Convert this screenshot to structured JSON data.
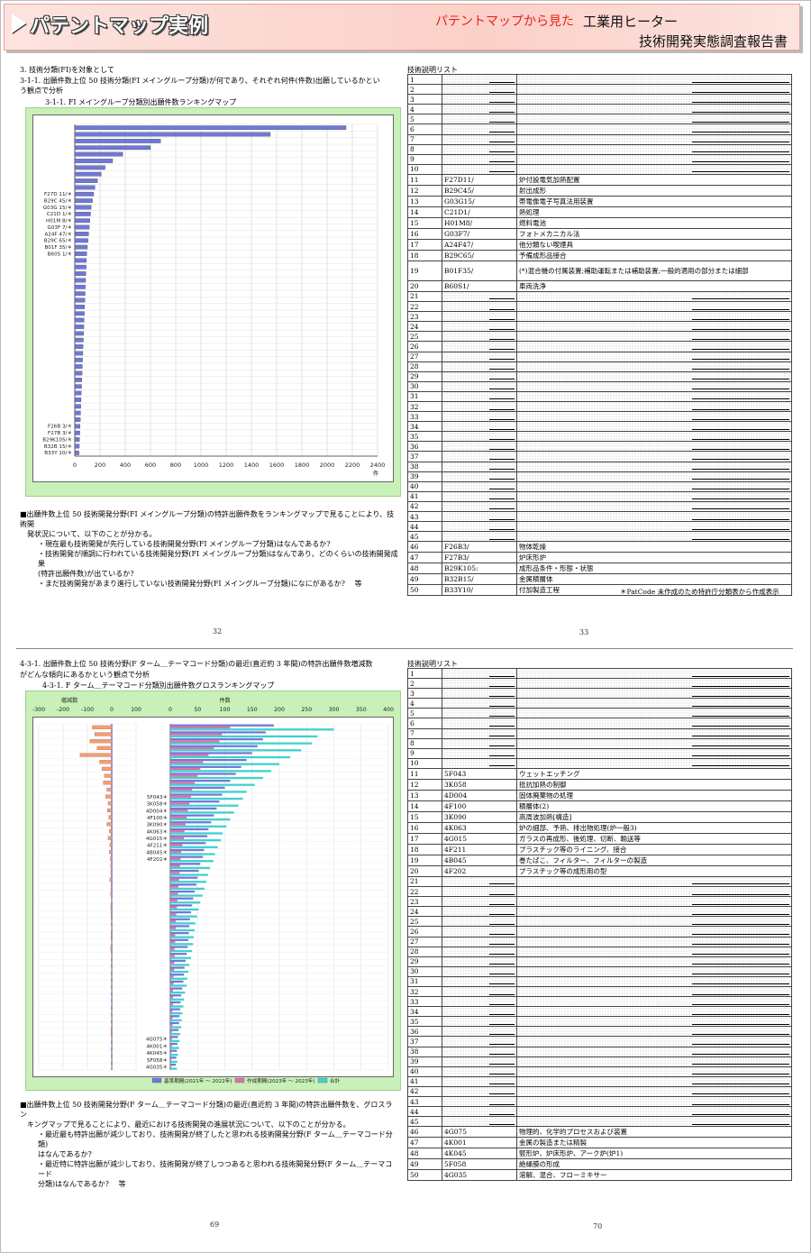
{
  "header": {
    "title": "パテントマップ実例",
    "subtitle": "パテントマップから見た",
    "product": "工業用ヒーター",
    "report": "技術開発実態調査報告書"
  },
  "page32": {
    "heading1": "3. 技術分類(FI)を対象として",
    "heading2a": "3-1-1. 出願件数上位 50 技術分類(FI メイングループ分類)が何であり、それぞれ何件(件数)出願しているかとい",
    "heading2b": "う観点で分析",
    "chart_title": "3-1-1. FI メイングループ分類別出願件数ランキングマップ",
    "desc_lines": [
      "■出願件数上位 50 技術開発分野(FI メイングループ分類)の特許出願件数をランキングマップで見ることにより、技術開",
      "発状況について、以下のことが分かる。",
      "・現在最も技術開発が先行している技術開発分野(FI メイングループ分類)はなんであるか?",
      "・技術開発が順調に行われている技術開発分野(FI メイングループ分類)はなんであり、どのくらいの技術開発成果",
      "(特許出願件数)が出ているか?",
      "・まだ技術開発があまり進行していない技術開発分野(FI メイングループ分類)になにがあるか?　 等"
    ],
    "page_number": "32"
  },
  "page33": {
    "list_title": "技術説明リスト",
    "rows": [
      {
        "n": "1",
        "code": "",
        "desc": ""
      },
      {
        "n": "2",
        "code": "",
        "desc": ""
      },
      {
        "n": "3",
        "code": "",
        "desc": ""
      },
      {
        "n": "4",
        "code": "",
        "desc": ""
      },
      {
        "n": "5",
        "code": "",
        "desc": ""
      },
      {
        "n": "6",
        "code": "",
        "desc": ""
      },
      {
        "n": "7",
        "code": "",
        "desc": ""
      },
      {
        "n": "8",
        "code": "",
        "desc": ""
      },
      {
        "n": "9",
        "code": "",
        "desc": ""
      },
      {
        "n": "10",
        "code": "",
        "desc": ""
      },
      {
        "n": "11",
        "code": "F27D11/",
        "desc": "炉付設電気加熱配置"
      },
      {
        "n": "12",
        "code": "B29C45/",
        "desc": "射出成形"
      },
      {
        "n": "13",
        "code": "G03G15/",
        "desc": "帯電像電子写真法用装置"
      },
      {
        "n": "14",
        "code": "C21D1/",
        "desc": "熱処理"
      },
      {
        "n": "15",
        "code": "H01M8/",
        "desc": "燃料電池"
      },
      {
        "n": "16",
        "code": "G03F7/",
        "desc": "フォトメカニカル法"
      },
      {
        "n": "17",
        "code": "A24F47/",
        "desc": "他分類ない喫煙具"
      },
      {
        "n": "18",
        "code": "B29C65/",
        "desc": "予備成形品接合"
      },
      {
        "n": "19",
        "code": "B01F35/",
        "desc": "(*)混合機の付属装置;補助運転または補助装置;一般的適用の部分または細部"
      },
      {
        "n": "20",
        "code": "B60S1/",
        "desc": "車両洗浄"
      },
      {
        "n": "21",
        "code": "",
        "desc": ""
      },
      {
        "n": "22",
        "code": "",
        "desc": ""
      },
      {
        "n": "23",
        "code": "",
        "desc": ""
      },
      {
        "n": "24",
        "code": "",
        "desc": ""
      },
      {
        "n": "25",
        "code": "",
        "desc": ""
      },
      {
        "n": "26",
        "code": "",
        "desc": ""
      },
      {
        "n": "27",
        "code": "",
        "desc": ""
      },
      {
        "n": "28",
        "code": "",
        "desc": ""
      },
      {
        "n": "29",
        "code": "",
        "desc": ""
      },
      {
        "n": "30",
        "code": "",
        "desc": ""
      },
      {
        "n": "31",
        "code": "",
        "desc": ""
      },
      {
        "n": "32",
        "code": "",
        "desc": ""
      },
      {
        "n": "33",
        "code": "",
        "desc": ""
      },
      {
        "n": "34",
        "code": "",
        "desc": ""
      },
      {
        "n": "35",
        "code": "",
        "desc": ""
      },
      {
        "n": "36",
        "code": "",
        "desc": ""
      },
      {
        "n": "37",
        "code": "",
        "desc": ""
      },
      {
        "n": "38",
        "code": "",
        "desc": ""
      },
      {
        "n": "39",
        "code": "",
        "desc": ""
      },
      {
        "n": "40",
        "code": "",
        "desc": ""
      },
      {
        "n": "41",
        "code": "",
        "desc": ""
      },
      {
        "n": "42",
        "code": "",
        "desc": ""
      },
      {
        "n": "43",
        "code": "",
        "desc": ""
      },
      {
        "n": "44",
        "code": "",
        "desc": ""
      },
      {
        "n": "45",
        "code": "",
        "desc": ""
      },
      {
        "n": "46",
        "code": "F26B3/",
        "desc": "物体乾燥"
      },
      {
        "n": "47",
        "code": "F27B3/",
        "desc": "炉床形炉"
      },
      {
        "n": "48",
        "code": "B29K105:",
        "desc": "成形品条件・形態・状態"
      },
      {
        "n": "49",
        "code": "B32B15/",
        "desc": "金属積層体"
      },
      {
        "n": "50",
        "code": "B33Y10/",
        "desc": "付加製造工程"
      }
    ],
    "note": "＊PatCode 未作成のため特許庁分類表から作成表示",
    "page_number": "33"
  },
  "page69": {
    "heading_a": "4-3-1. 出願件数上位 50 技術分野(F ターム＿テーマコード分類)の最近(直近約 3 年間)の特許出願件数増減数",
    "heading_b": "がどんな傾向にあるかという観点で分析",
    "chart_title": "4-3-1. F ターム＿テーマコード分類別出願件数グロスランキングマップ",
    "legend": [
      "基準期間(2021年 〜 2022年)",
      "作成期間(2023年 〜 2023年)",
      "合計"
    ],
    "desc_lines": [
      "■出願件数上位 50 技術開発分野(F ターム＿テーマコード分類)の最近(直近約 3 年間)の特許出願件数を、グロスラン",
      "キングマップで見ることにより、最近における技術開発の進展状況について、以下のことが分かる。",
      "・最近最も特許出願が減少しており、技術開発が終了したと思われる技術開発分野(F ターム＿テーマコード分類)",
      "はなんであるか?",
      "・最近特に特許出願が減少しており、技術開発が終了しつつあると思われる技術開発分野(F ターム＿テーマコード",
      "分類)はなんであるか?　 等"
    ],
    "page_number": "69"
  },
  "page70": {
    "list_title": "技術説明リスト",
    "rows": [
      {
        "n": "1",
        "code": "",
        "desc": ""
      },
      {
        "n": "2",
        "code": "",
        "desc": ""
      },
      {
        "n": "3",
        "code": "",
        "desc": ""
      },
      {
        "n": "4",
        "code": "",
        "desc": ""
      },
      {
        "n": "5",
        "code": "",
        "desc": ""
      },
      {
        "n": "6",
        "code": "",
        "desc": ""
      },
      {
        "n": "7",
        "code": "",
        "desc": ""
      },
      {
        "n": "8",
        "code": "",
        "desc": ""
      },
      {
        "n": "9",
        "code": "",
        "desc": ""
      },
      {
        "n": "10",
        "code": "",
        "desc": ""
      },
      {
        "n": "11",
        "code": "5F043",
        "desc": "ウェットエッチング"
      },
      {
        "n": "12",
        "code": "3K058",
        "desc": "抵抗加熱の制御"
      },
      {
        "n": "13",
        "code": "4D004",
        "desc": "固体廃棄物の処理"
      },
      {
        "n": "14",
        "code": "4F100",
        "desc": "積層体(2)"
      },
      {
        "n": "15",
        "code": "3K090",
        "desc": "高周波加熱[構造]"
      },
      {
        "n": "16",
        "code": "4K063",
        "desc": "炉の細部、予熱、排出物処理(炉一般3)"
      },
      {
        "n": "17",
        "code": "4G015",
        "desc": "ガラスの再成形、後処理、切断、輸送等"
      },
      {
        "n": "18",
        "code": "4F211",
        "desc": "プラスチック等のライニング、接合"
      },
      {
        "n": "19",
        "code": "4B045",
        "desc": "巻たばこ、フィルター、フィルターの製造"
      },
      {
        "n": "20",
        "code": "4F202",
        "desc": "プラスチック等の成形用の型"
      },
      {
        "n": "21",
        "code": "",
        "desc": ""
      },
      {
        "n": "22",
        "code": "",
        "desc": ""
      },
      {
        "n": "23",
        "code": "",
        "desc": ""
      },
      {
        "n": "24",
        "code": "",
        "desc": ""
      },
      {
        "n": "25",
        "code": "",
        "desc": ""
      },
      {
        "n": "26",
        "code": "",
        "desc": ""
      },
      {
        "n": "27",
        "code": "",
        "desc": ""
      },
      {
        "n": "28",
        "code": "",
        "desc": ""
      },
      {
        "n": "29",
        "code": "",
        "desc": ""
      },
      {
        "n": "30",
        "code": "",
        "desc": ""
      },
      {
        "n": "31",
        "code": "",
        "desc": ""
      },
      {
        "n": "32",
        "code": "",
        "desc": ""
      },
      {
        "n": "33",
        "code": "",
        "desc": ""
      },
      {
        "n": "34",
        "code": "",
        "desc": ""
      },
      {
        "n": "35",
        "code": "",
        "desc": ""
      },
      {
        "n": "36",
        "code": "",
        "desc": ""
      },
      {
        "n": "37",
        "code": "",
        "desc": ""
      },
      {
        "n": "38",
        "code": "",
        "desc": ""
      },
      {
        "n": "39",
        "code": "",
        "desc": ""
      },
      {
        "n": "40",
        "code": "",
        "desc": ""
      },
      {
        "n": "41",
        "code": "",
        "desc": ""
      },
      {
        "n": "42",
        "code": "",
        "desc": ""
      },
      {
        "n": "43",
        "code": "",
        "desc": ""
      },
      {
        "n": "44",
        "code": "",
        "desc": ""
      },
      {
        "n": "45",
        "code": "",
        "desc": ""
      },
      {
        "n": "46",
        "code": "4G075",
        "desc": "物理的、化学的プロセスおよび装置"
      },
      {
        "n": "47",
        "code": "4K001",
        "desc": "金属の製造または精製"
      },
      {
        "n": "48",
        "code": "4K045",
        "desc": "竪形炉、炉床形炉、アーク炉(炉1)"
      },
      {
        "n": "49",
        "code": "5F058",
        "desc": "絶縁膜の形成"
      },
      {
        "n": "50",
        "code": "4G035",
        "desc": "溶解、混合、フローミキサー"
      }
    ],
    "page_number": "70"
  },
  "chart_data": [
    {
      "type": "bar",
      "orientation": "horizontal",
      "title": "3-1-1. FI メイングループ分類別出願件数ランキングマップ",
      "xlabel": "件",
      "xlim": [
        0,
        2400
      ],
      "xticks": [
        0,
        200,
        400,
        600,
        800,
        1000,
        1200,
        1400,
        1600,
        1800,
        2000,
        2200,
        2400
      ],
      "grid": true,
      "visible_category_labels": {
        "11": "F27D 11/＊",
        "12": "B29C 45/＊",
        "13": "G03G 15/＊",
        "14": "C21D 1/＊",
        "15": "H01M 8/＊",
        "16": "G03F 7/＊",
        "17": "A24F 47/＊",
        "18": "B29C 65/＊",
        "19": "B01F 35/＊",
        "20": "B60S 1/＊",
        "46": "F26B 3/＊",
        "47": "F27B 3/＊",
        "48": "B29K105/＊",
        "49": "B32B 15/＊",
        "50": "B33Y 10/＊"
      },
      "values": [
        2150,
        1550,
        680,
        600,
        380,
        300,
        240,
        210,
        180,
        160,
        150,
        140,
        130,
        125,
        120,
        115,
        110,
        105,
        100,
        95,
        92,
        90,
        88,
        86,
        84,
        82,
        80,
        78,
        76,
        74,
        72,
        70,
        68,
        66,
        64,
        62,
        60,
        58,
        56,
        54,
        52,
        50,
        48,
        46,
        44,
        42,
        40,
        38,
        36,
        34
      ],
      "color": "#6f78d8"
    },
    {
      "type": "bar",
      "orientation": "horizontal",
      "title": "4-3-1. F ターム＿テーマコード分類別出願件数グロスランキングマップ",
      "left_panel": {
        "label": "増減数",
        "xlim": [
          -300,
          100
        ],
        "xticks": [
          -300,
          -200,
          -100,
          0,
          100
        ]
      },
      "right_panel": {
        "label": "件数",
        "xlim": [
          0,
          400
        ],
        "xticks": [
          0,
          50,
          100,
          150,
          200,
          250,
          300,
          350,
          400
        ]
      },
      "visible_category_labels": {
        "11": "5F043＊",
        "12": "3K058＊",
        "13": "4D004＊",
        "14": "4F100＊",
        "15": "3K090＊",
        "16": "4K063＊",
        "17": "4G015＊",
        "18": "4F211＊",
        "19": "4B045＊",
        "20": "4F202＊",
        "46": "4G075＊",
        "47": "4K001＊",
        "48": "4K045＊",
        "49": "5F058＊",
        "50": "4G035＊"
      },
      "legend_position": "bottom",
      "series": [
        {
          "name": "基準期間(2021年 〜 2022年)",
          "color": "#6f78d8",
          "values": [
            190,
            175,
            170,
            160,
            150,
            140,
            130,
            120,
            110,
            100,
            95,
            90,
            85,
            80,
            75,
            70,
            68,
            65,
            62,
            60,
            55,
            52,
            50,
            48,
            45,
            42,
            40,
            38,
            36,
            35,
            34,
            33,
            32,
            30,
            28,
            26,
            25,
            24,
            22,
            20,
            19,
            18,
            17,
            16,
            15,
            14,
            13,
            12,
            11,
            10
          ]
        },
        {
          "name": "作成期間(2023年 〜 2023年)",
          "color": "#e070a8",
          "values": [
            110,
            95,
            90,
            80,
            70,
            60,
            55,
            50,
            45,
            40,
            38,
            35,
            32,
            30,
            28,
            26,
            25,
            22,
            20,
            19,
            18,
            17,
            16,
            15,
            14,
            13,
            12,
            11,
            10,
            10,
            9,
            9,
            8,
            8,
            7,
            7,
            6,
            6,
            5,
            5,
            5,
            4,
            4,
            4,
            3,
            3,
            3,
            2,
            2,
            2
          ]
        },
        {
          "name": "合計",
          "color": "#40d0d0",
          "values": [
            300,
            270,
            260,
            240,
            220,
            200,
            185,
            170,
            155,
            140,
            133,
            125,
            117,
            110,
            103,
            96,
            93,
            87,
            82,
            79,
            73,
            69,
            66,
            63,
            59,
            55,
            52,
            49,
            46,
            45,
            43,
            42,
            40,
            38,
            35,
            33,
            31,
            30,
            27,
            25,
            24,
            22,
            21,
            20,
            18,
            17,
            16,
            14,
            13,
            12
          ]
        },
        {
          "name": "増減数",
          "color": "#f0a070",
          "values": [
            -80,
            -70,
            -90,
            -60,
            -130,
            -50,
            -40,
            -30,
            -35,
            -20,
            -25,
            -15,
            -18,
            -12,
            -20,
            -10,
            -15,
            -8,
            -10,
            -6,
            -5,
            -4,
            -8,
            -3,
            -5,
            -2,
            -4,
            -3,
            -2,
            -1,
            -3,
            -2,
            -5,
            -1,
            -2,
            -1,
            -2,
            -1,
            -1,
            -1,
            -1,
            -2,
            -1,
            -1,
            -3,
            -1,
            -1,
            -2,
            -1,
            -1
          ]
        }
      ]
    }
  ]
}
